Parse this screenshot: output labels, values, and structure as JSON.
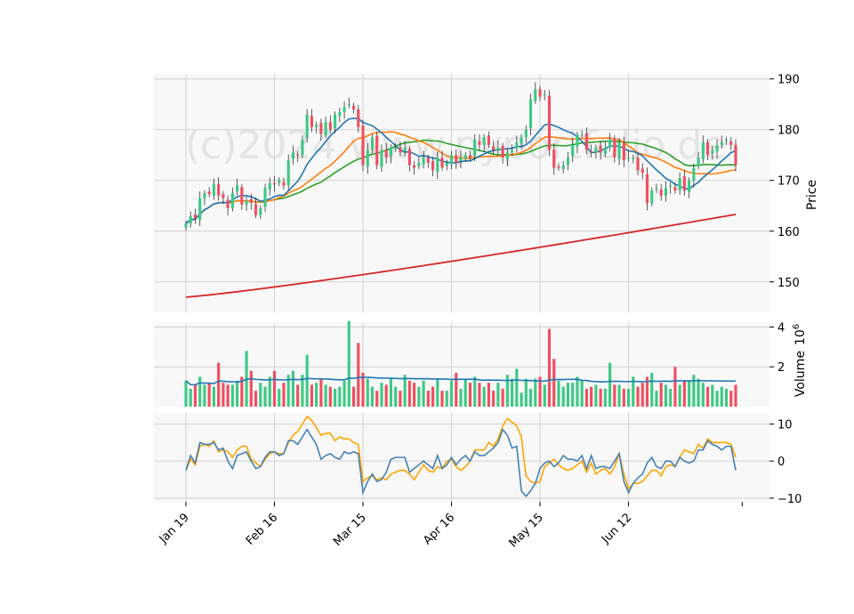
{
  "chart_data": {
    "type": "candlestick",
    "watermark": "(c)2024 www.pyportfolio.de",
    "x_tick_labels": [
      "Jan 19",
      "Feb 16",
      "Mar 15",
      "Apr 16",
      "May 15",
      "Jun 12"
    ],
    "x_tick_positions": [
      0,
      19,
      38,
      57,
      76,
      95
    ],
    "colors": {
      "up": "#3dc985",
      "down": "#ef4f60",
      "ma_short": "#1f77b4",
      "ma_mid": "#ff7f0e",
      "ma_long": "#2ca02c",
      "ma_200": "#d62728",
      "vol_ma": "#1f77b4",
      "osc_fast": "#4682b4",
      "osc_slow": "#ffa500",
      "panel_bg": "#f8f8f8",
      "grid": "#d0d0d0"
    },
    "price_panel": {
      "ylabel": "Price",
      "ylim": [
        144,
        191
      ],
      "ticks": [
        150,
        160,
        170,
        180,
        190
      ]
    },
    "volume_panel": {
      "ylabel": "Volume  10^6",
      "ylabel_main": "Volume",
      "ylabel_exp": "10",
      "ylabel_sup": "6",
      "ylim": [
        0,
        4.2
      ],
      "ticks": [
        2,
        4
      ]
    },
    "oscillator_panel": {
      "ylim": [
        -11,
        13
      ],
      "ticks": [
        10,
        0,
        -10
      ],
      "tick_labels": [
        "10",
        "0",
        "−10"
      ]
    },
    "close": [
      161.5,
      163.0,
      162.5,
      166.5,
      167.5,
      167.3,
      169.3,
      167.0,
      166.5,
      164.5,
      167.5,
      169.0,
      165.2,
      166.0,
      165.6,
      163.2,
      164.5,
      168.5,
      169.5,
      169.2,
      170.0,
      169.0,
      174.0,
      175.5,
      175.0,
      178.0,
      183.0,
      180.5,
      181.0,
      179.2,
      181.5,
      180.0,
      183.0,
      183.5,
      184.5,
      185.0,
      184.0,
      180.5,
      173.0,
      176.0,
      178.5,
      173.0,
      176.0,
      174.5,
      176.5,
      176.5,
      175.5,
      176.5,
      173.0,
      172.5,
      173.5,
      174.5,
      173.5,
      172.0,
      174.5,
      172.5,
      173.5,
      175.0,
      173.5,
      174.5,
      175.0,
      174.5,
      178.0,
      177.0,
      178.5,
      177.0,
      176.0,
      176.5,
      174.5,
      175.5,
      176.0,
      177.5,
      178.5,
      180.0,
      186.0,
      188.0,
      186.5,
      187.0,
      176.0,
      172.5,
      172.5,
      173.0,
      174.5,
      177.0,
      179.0,
      179.0,
      176.0,
      175.5,
      176.5,
      175.5,
      176.5,
      178.0,
      174.5,
      177.5,
      174.0,
      174.5,
      174.5,
      172.0,
      171.5,
      165.5,
      168.0,
      168.5,
      167.0,
      168.5,
      169.0,
      168.0,
      170.5,
      168.0,
      170.0,
      172.5,
      174.5,
      177.5,
      175.0,
      176.0,
      177.0,
      177.5,
      178.0,
      177.0,
      173.0
    ],
    "volume": [
      1.3,
      0.9,
      1.1,
      1.5,
      1.1,
      1.2,
      1.0,
      2.2,
      1.2,
      1.1,
      1.1,
      1.3,
      1.5,
      2.8,
      1.8,
      0.8,
      1.2,
      1.0,
      1.5,
      1.8,
      0.9,
      1.2,
      1.6,
      1.8,
      1.1,
      1.6,
      2.6,
      1.1,
      1.2,
      1.4,
      1.1,
      1.0,
      0.9,
      1.0,
      1.3,
      4.3,
      1.0,
      3.2,
      1.7,
      1.4,
      1.0,
      0.8,
      1.2,
      1.1,
      1.4,
      1.0,
      0.8,
      1.6,
      1.3,
      1.2,
      1.0,
      1.3,
      0.8,
      1.0,
      1.4,
      0.8,
      0.8,
      1.3,
      1.7,
      0.9,
      1.4,
      1.2,
      1.5,
      1.2,
      1.0,
      1.2,
      0.8,
      1.2,
      0.9,
      1.6,
      1.4,
      1.9,
      0.7,
      1.4,
      0.9,
      1.4,
      1.5,
      1.1,
      3.9,
      2.4,
      1.3,
      1.0,
      1.2,
      1.2,
      1.5,
      1.3,
      0.9,
      1.0,
      1.1,
      0.9,
      0.9,
      2.2,
      1.1,
      1.1,
      0.9,
      0.9,
      1.5,
      1.0,
      1.2,
      1.5,
      1.7,
      0.8,
      1.2,
      1.1,
      0.9,
      2.0,
      1.1,
      1.3,
      1.3,
      1.6,
      1.4,
      1.2,
      1.0,
      1.1,
      0.8,
      1.0,
      0.9,
      0.8,
      1.1
    ],
    "oscillator_fast": [
      -2.5,
      1.5,
      -0.5,
      5.0,
      4.5,
      4.5,
      5.0,
      3.0,
      3.5,
      0.0,
      -2.0,
      1.5,
      2.0,
      2.5,
      0.0,
      -2.0,
      -1.5,
      1.0,
      2.5,
      2.5,
      1.5,
      2.0,
      5.5,
      5.5,
      4.5,
      6.5,
      8.5,
      6.5,
      4.5,
      0.5,
      1.5,
      2.0,
      1.0,
      0.5,
      2.5,
      2.0,
      2.5,
      2.0,
      -8.5,
      -5.5,
      -3.5,
      -5.5,
      -5.0,
      -3.0,
      0.5,
      1.0,
      1.0,
      1.0,
      -3.0,
      -2.0,
      -1.0,
      0.0,
      -1.0,
      -2.0,
      1.5,
      -2.0,
      -1.0,
      1.0,
      -1.0,
      0.5,
      1.5,
      0.0,
      2.5,
      1.5,
      1.5,
      2.5,
      3.5,
      5.0,
      8.5,
      7.0,
      3.5,
      4.0,
      -8.0,
      -9.5,
      -8.0,
      -6.0,
      -2.0,
      -0.5,
      0.0,
      -1.5,
      -0.5,
      1.5,
      0.5,
      0.5,
      0.0,
      1.5,
      -2.0,
      1.5,
      -2.0,
      -1.5,
      -1.5,
      -2.0,
      0.0,
      2.0,
      -5.5,
      -8.5,
      -6.0,
      -4.5,
      -3.5,
      -0.5,
      1.0,
      -1.5,
      -2.0,
      0.0,
      0.0,
      -1.5,
      1.0,
      0.0,
      -0.5,
      0.0,
      3.0,
      3.0,
      5.5,
      4.5,
      4.0,
      3.0,
      4.0,
      4.0,
      -2.5
    ],
    "oscillator_slow": [
      -2.5,
      0.5,
      -1.0,
      4.0,
      4.5,
      4.0,
      5.5,
      2.5,
      3.0,
      2.5,
      1.0,
      3.0,
      4.0,
      4.0,
      0.5,
      -0.5,
      -1.5,
      0.5,
      2.0,
      2.5,
      2.0,
      2.0,
      5.0,
      7.0,
      8.0,
      10.0,
      12.0,
      11.0,
      9.0,
      7.0,
      7.5,
      7.5,
      5.5,
      6.5,
      6.0,
      6.0,
      5.0,
      4.5,
      -5.5,
      -4.5,
      -4.0,
      -5.0,
      -4.5,
      -5.0,
      -3.5,
      -3.0,
      -2.5,
      -2.5,
      -3.5,
      -5.0,
      -3.0,
      -1.0,
      -2.5,
      -3.0,
      -1.5,
      -2.0,
      0.0,
      0.5,
      -1.5,
      -2.5,
      -1.5,
      0.0,
      3.0,
      3.0,
      3.0,
      5.0,
      4.0,
      6.0,
      9.5,
      11.5,
      10.5,
      9.5,
      6.5,
      -4.0,
      -5.5,
      -6.0,
      -5.5,
      -1.5,
      -0.5,
      0.5,
      -1.0,
      -2.0,
      -2.5,
      -2.0,
      -1.0,
      0.0,
      -3.0,
      -0.5,
      -3.5,
      -2.5,
      -2.0,
      -3.5,
      -1.5,
      2.0,
      -3.5,
      -7.5,
      -6.0,
      -6.0,
      -5.5,
      -4.0,
      -2.5,
      -2.5,
      -4.0,
      -1.5,
      -1.0,
      -1.5,
      1.0,
      3.0,
      2.5,
      2.0,
      4.5,
      3.5,
      6.0,
      5.0,
      5.0,
      5.0,
      5.0,
      4.5,
      1.0
    ]
  }
}
